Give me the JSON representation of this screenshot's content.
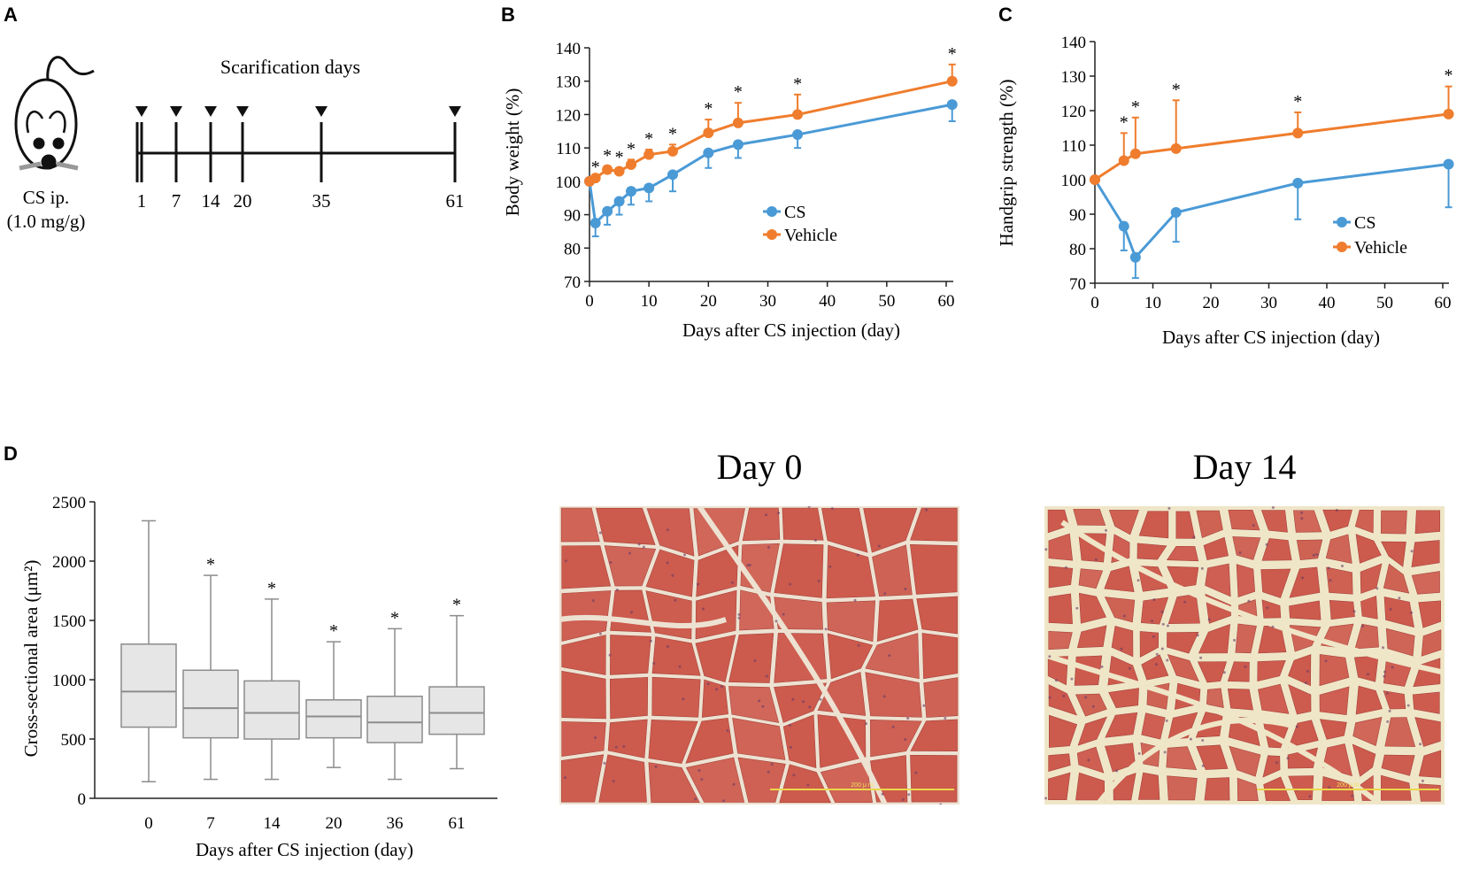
{
  "panels": {
    "a": "A",
    "b": "B",
    "c": "C",
    "d": "D"
  },
  "timeline": {
    "title": "Scarification days",
    "days": [
      "1",
      "7",
      "14",
      "20",
      "35",
      "61"
    ],
    "injection_line1": "CS ip.",
    "injection_line2": "(1.0 mg/g)"
  },
  "colors": {
    "cs": "#4a9ad6",
    "vehicle": "#ef7d2d",
    "box_fill": "#e6e6e6",
    "box_stroke": "#8c8c8c",
    "tissue": "#cc5a4d",
    "membrane": "#f2ead6",
    "scale_bar": "#ecd74a"
  },
  "micrographs": {
    "day0_title": "Day 0",
    "day14_title": "Day 14",
    "scale_label": "200 μ m"
  },
  "chart_data": [
    {
      "id": "B",
      "type": "line",
      "title": "",
      "xlabel": "Days after CS injection (day)",
      "ylabel": "Body weight (%)",
      "xlim": [
        0,
        60
      ],
      "ylim": [
        70,
        140
      ],
      "xticks": [
        "0",
        "10",
        "20",
        "30",
        "40",
        "50",
        "60"
      ],
      "yticks": [
        "70",
        "80",
        "90",
        "100",
        "110",
        "120",
        "130",
        "140"
      ],
      "legend": {
        "position": "right",
        "labels": [
          "CS",
          "Vehicle"
        ]
      },
      "series": [
        {
          "name": "CS",
          "x": [
            0,
            1,
            3,
            5,
            7,
            10,
            14,
            20,
            25,
            35,
            61
          ],
          "values": [
            100,
            87.5,
            91,
            94,
            97,
            98,
            102,
            108.5,
            111,
            114,
            123
          ],
          "err": [
            0,
            4,
            4,
            4,
            4,
            4,
            5,
            4.5,
            4,
            4,
            5
          ]
        },
        {
          "name": "Vehicle",
          "x": [
            0,
            1,
            3,
            5,
            7,
            10,
            14,
            20,
            25,
            35,
            61
          ],
          "values": [
            100,
            101,
            103.5,
            103,
            105,
            108,
            109,
            114.5,
            117.5,
            120,
            130
          ],
          "err": [
            0,
            0,
            1,
            1,
            1.5,
            1.5,
            2,
            4,
            6,
            6,
            5
          ]
        }
      ],
      "significance": [
        1,
        3,
        5,
        7,
        10,
        14,
        20,
        25,
        35,
        61
      ],
      "sig_label": "*"
    },
    {
      "id": "C",
      "type": "line",
      "title": "",
      "xlabel": "Days after CS injection (day)",
      "ylabel": "Handgrip strength (%)",
      "xlim": [
        0,
        60
      ],
      "ylim": [
        70,
        140
      ],
      "xticks": [
        "0",
        "10",
        "20",
        "30",
        "40",
        "50",
        "60"
      ],
      "yticks": [
        "70",
        "80",
        "90",
        "100",
        "110",
        "120",
        "130",
        "140"
      ],
      "legend": {
        "position": "right",
        "labels": [
          "CS",
          "Vehicle"
        ]
      },
      "series": [
        {
          "name": "CS",
          "x": [
            0,
            5,
            7,
            14,
            35,
            61
          ],
          "values": [
            100,
            86.5,
            77.5,
            90.5,
            99,
            104.5
          ],
          "err": [
            0,
            7,
            6,
            8.5,
            10.5,
            12.5
          ]
        },
        {
          "name": "Vehicle",
          "x": [
            0,
            5,
            7,
            14,
            35,
            61
          ],
          "values": [
            100,
            105.5,
            107.5,
            109,
            113.5,
            119
          ],
          "err": [
            0,
            8,
            10.5,
            14,
            6,
            8
          ]
        }
      ],
      "significance": [
        5,
        7,
        14,
        35,
        61
      ],
      "sig_label": "*"
    },
    {
      "id": "D",
      "type": "box",
      "title": "",
      "xlabel": "Days after CS injection (day)",
      "ylabel": "Cross-sectional area (μm²)",
      "ylim": [
        0,
        2500
      ],
      "yticks": [
        "0",
        "500",
        "1000",
        "1500",
        "2000",
        "2500"
      ],
      "categories": [
        "0",
        "7",
        "14",
        "20",
        "36",
        "61"
      ],
      "boxes": [
        {
          "min": 140,
          "q1": 600,
          "median": 900,
          "q3": 1300,
          "max": 2340,
          "sig": false
        },
        {
          "min": 160,
          "q1": 510,
          "median": 760,
          "q3": 1080,
          "max": 1880,
          "sig": true
        },
        {
          "min": 160,
          "q1": 500,
          "median": 720,
          "q3": 990,
          "max": 1680,
          "sig": true
        },
        {
          "min": 260,
          "q1": 510,
          "median": 690,
          "q3": 830,
          "max": 1320,
          "sig": true
        },
        {
          "min": 160,
          "q1": 470,
          "median": 640,
          "q3": 860,
          "max": 1430,
          "sig": true
        },
        {
          "min": 250,
          "q1": 540,
          "median": 720,
          "q3": 940,
          "max": 1540,
          "sig": true
        }
      ],
      "sig_label": "*"
    }
  ]
}
